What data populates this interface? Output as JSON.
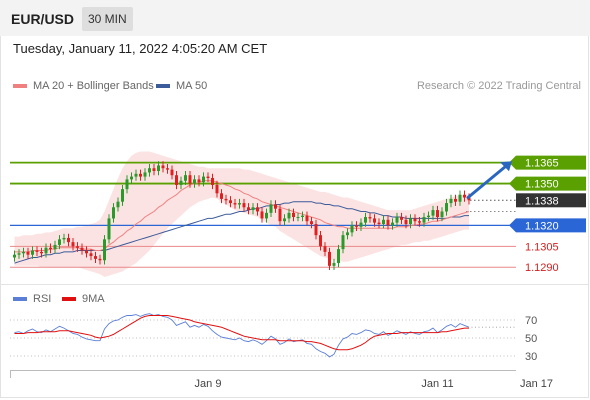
{
  "header": {
    "pair": "EUR/USD",
    "timeframe": "30 MIN"
  },
  "timestamp": "Tuesday, January 11, 2022 4:05:20 AM CET",
  "legend": {
    "ma20_label": "MA 20 + Bollinger Bands",
    "ma50_label": "MA 50",
    "ma20_color": "#f08080",
    "ma50_color": "#3b5b9a"
  },
  "credit": "Research © 2022 Trading Central",
  "rsi_legend": {
    "rsi_label": "RSI",
    "ma9_label": "9MA",
    "rsi_color": "#5b7fd6",
    "ma9_color": "#e01010"
  },
  "colors": {
    "green": "#5aa000",
    "blue": "#2a66d6",
    "red": "#e88888",
    "up": "#2a9a2a",
    "down": "#e02020",
    "last": "#333333"
  },
  "chart_data": {
    "type": "candlestick",
    "ylim": [
      1.1283,
      1.1392
    ],
    "n_bars": 102,
    "levels": [
      {
        "value": 1.1365,
        "label": "1.1365",
        "kind": "resistance",
        "color": "#5aa000"
      },
      {
        "value": 1.135,
        "label": "1.1350",
        "kind": "resistance",
        "color": "#5aa000"
      },
      {
        "value": 1.1338,
        "label": "1.1338",
        "kind": "last",
        "color": "#333333"
      },
      {
        "value": 1.132,
        "label": "1.1320",
        "kind": "pivot",
        "color": "#2a66d6"
      },
      {
        "value": 1.1305,
        "label": "1.1305",
        "kind": "support",
        "color": "#e88888"
      },
      {
        "value": 1.129,
        "label": "1.1290",
        "kind": "support",
        "color": "#e88888"
      }
    ],
    "close": [
      1.1299,
      1.13,
      1.1301,
      1.1299,
      1.1302,
      1.1301,
      1.13,
      1.1304,
      1.1303,
      1.1306,
      1.131,
      1.1311,
      1.1308,
      1.1305,
      1.1304,
      1.1302,
      1.13,
      1.1298,
      1.1296,
      1.1295,
      1.131,
      1.1325,
      1.1333,
      1.1337,
      1.1346,
      1.1353,
      1.1355,
      1.1357,
      1.1355,
      1.1358,
      1.1361,
      1.1359,
      1.1363,
      1.1361,
      1.136,
      1.1356,
      1.1349,
      1.1352,
      1.1356,
      1.135,
      1.1353,
      1.1351,
      1.1355,
      1.1354,
      1.1349,
      1.1343,
      1.1339,
      1.1338,
      1.1336,
      1.1335,
      1.1336,
      1.1333,
      1.1331,
      1.1333,
      1.133,
      1.1325,
      1.1329,
      1.1335,
      1.1332,
      1.1323,
      1.1325,
      1.1329,
      1.1326,
      1.1326,
      1.1327,
      1.1323,
      1.1321,
      1.1313,
      1.1305,
      1.1301,
      1.1291,
      1.1293,
      1.1303,
      1.1313,
      1.1315,
      1.132,
      1.1319,
      1.1322,
      1.1326,
      1.1325,
      1.1322,
      1.1321,
      1.1324,
      1.132,
      1.1322,
      1.1326,
      1.1324,
      1.1321,
      1.1325,
      1.1323,
      1.1322,
      1.1326,
      1.1327,
      1.1331,
      1.1326,
      1.133,
      1.1336,
      1.1339,
      1.1337,
      1.1342,
      1.134,
      1.1338
    ],
    "ma20": [
      1.1301,
      1.1301,
      1.1301,
      1.1301,
      1.1302,
      1.1302,
      1.1302,
      1.1302,
      1.1303,
      1.1303,
      1.1304,
      1.1304,
      1.1304,
      1.1304,
      1.1304,
      1.1303,
      1.1303,
      1.1303,
      1.1302,
      1.1302,
      1.1303,
      1.1306,
      1.1308,
      1.1311,
      1.1313,
      1.1316,
      1.1318,
      1.1321,
      1.1323,
      1.1326,
      1.1328,
      1.133,
      1.1333,
      1.1335,
      1.1338,
      1.134,
      1.1342,
      1.1345,
      1.1347,
      1.1349,
      1.135,
      1.1351,
      1.1352,
      1.1352,
      1.1352,
      1.1351,
      1.135,
      1.1349,
      1.1348,
      1.1346,
      1.1345,
      1.1343,
      1.1342,
      1.134,
      1.1339,
      1.1337,
      1.1336,
      1.1335,
      1.1334,
      1.1333,
      1.1332,
      1.1331,
      1.133,
      1.1329,
      1.1328,
      1.1327,
      1.1326,
      1.1325,
      1.1324,
      1.1322,
      1.1321,
      1.132,
      1.1319,
      1.1319,
      1.1318,
      1.1318,
      1.1318,
      1.1318,
      1.1318,
      1.1318,
      1.1318,
      1.1318,
      1.1318,
      1.1318,
      1.1318,
      1.1319,
      1.1319,
      1.1319,
      1.132,
      1.132,
      1.1321,
      1.1321,
      1.1322,
      1.1323,
      1.1323,
      1.1324,
      1.1325,
      1.1326,
      1.1327,
      1.1328,
      1.1329,
      1.133
    ],
    "ma50": [
      1.1293,
      1.1294,
      1.1295,
      1.1296,
      1.1297,
      1.1297,
      1.1298,
      1.1299,
      1.1299,
      1.13,
      1.13,
      1.1301,
      1.1301,
      1.1301,
      1.1302,
      1.1302,
      1.1302,
      1.1302,
      1.1302,
      1.1302,
      1.1302,
      1.1303,
      1.1304,
      1.1305,
      1.1306,
      1.1307,
      1.1308,
      1.1309,
      1.131,
      1.1311,
      1.1312,
      1.1313,
      1.1314,
      1.1315,
      1.1316,
      1.1317,
      1.1318,
      1.1319,
      1.132,
      1.1321,
      1.1322,
      1.1323,
      1.1324,
      1.1325,
      1.1325,
      1.1326,
      1.1327,
      1.1328,
      1.1328,
      1.1329,
      1.133,
      1.133,
      1.1331,
      1.1332,
      1.1332,
      1.1333,
      1.1334,
      1.1334,
      1.1335,
      1.1335,
      1.1336,
      1.1336,
      1.1337,
      1.1337,
      1.1337,
      1.1337,
      1.1337,
      1.1336,
      1.1336,
      1.1335,
      1.1335,
      1.1334,
      1.1334,
      1.1333,
      1.1332,
      1.1332,
      1.1331,
      1.133,
      1.133,
      1.1329,
      1.1329,
      1.1328,
      1.1327,
      1.1327,
      1.1326,
      1.1326,
      1.1326,
      1.1325,
      1.1325,
      1.1325,
      1.1325,
      1.1325,
      1.1325,
      1.1325,
      1.1325,
      1.1325,
      1.1325,
      1.1326,
      1.1326,
      1.1326,
      1.1327,
      1.1327
    ],
    "bb_upper": [
      1.1312,
      1.1312,
      1.1313,
      1.1313,
      1.1313,
      1.1314,
      1.1314,
      1.1315,
      1.1315,
      1.1316,
      1.1317,
      1.1318,
      1.1318,
      1.1318,
      1.1319,
      1.1319,
      1.132,
      1.1321,
      1.1322,
      1.1324,
      1.133,
      1.1338,
      1.1346,
      1.1354,
      1.1361,
      1.1366,
      1.137,
      1.1372,
      1.1373,
      1.1373,
      1.1373,
      1.1372,
      1.1371,
      1.137,
      1.1369,
      1.1368,
      1.1367,
      1.1366,
      1.1365,
      1.1364,
      1.1363,
      1.1362,
      1.1362,
      1.1361,
      1.1361,
      1.1361,
      1.1361,
      1.1361,
      1.1361,
      1.1361,
      1.1361,
      1.136,
      1.136,
      1.1359,
      1.1358,
      1.1357,
      1.1356,
      1.1355,
      1.1354,
      1.1353,
      1.1352,
      1.1351,
      1.135,
      1.1349,
      1.1348,
      1.1347,
      1.1346,
      1.1345,
      1.1344,
      1.1344,
      1.1343,
      1.1342,
      1.1341,
      1.134,
      1.134,
      1.1339,
      1.1338,
      1.1337,
      1.1336,
      1.1335,
      1.1334,
      1.1333,
      1.1332,
      1.1331,
      1.1331,
      1.1331,
      1.1331,
      1.1331,
      1.1331,
      1.1332,
      1.1333,
      1.1334,
      1.1335,
      1.1336,
      1.1337,
      1.1338,
      1.1339,
      1.134,
      1.1341,
      1.1342,
      1.1342,
      1.1342
    ],
    "bb_lower": [
      1.1291,
      1.1291,
      1.1291,
      1.1291,
      1.1291,
      1.1291,
      1.129,
      1.129,
      1.129,
      1.129,
      1.129,
      1.129,
      1.129,
      1.129,
      1.129,
      1.1289,
      1.1288,
      1.1287,
      1.1286,
      1.1285,
      1.1283,
      1.1284,
      1.1285,
      1.1286,
      1.1287,
      1.1289,
      1.1291,
      1.1293,
      1.1296,
      1.1299,
      1.1302,
      1.1306,
      1.131,
      1.1314,
      1.1318,
      1.1321,
      1.1324,
      1.1327,
      1.133,
      1.1333,
      1.1335,
      1.1337,
      1.1338,
      1.1339,
      1.134,
      1.1339,
      1.1337,
      1.1335,
      1.1333,
      1.1331,
      1.133,
      1.1329,
      1.1328,
      1.1327,
      1.1326,
      1.1324,
      1.1322,
      1.132,
      1.1319,
      1.1316,
      1.1314,
      1.1312,
      1.131,
      1.1308,
      1.1306,
      1.1304,
      1.1302,
      1.13,
      1.1298,
      1.1297,
      1.1296,
      1.1295,
      1.1295,
      1.1294,
      1.1294,
      1.1295,
      1.1296,
      1.1297,
      1.1298,
      1.1299,
      1.13,
      1.1301,
      1.1302,
      1.1303,
      1.1304,
      1.1305,
      1.1306,
      1.1306,
      1.1307,
      1.1308,
      1.1308,
      1.1309,
      1.1309,
      1.131,
      1.1311,
      1.1312,
      1.1313,
      1.1314,
      1.1315,
      1.1316,
      1.1317,
      1.1317
    ],
    "arrow": {
      "from_value": 1.134,
      "to_value": 1.1366
    },
    "projection_value": 1.133,
    "x_ticks": [
      {
        "bar": 43,
        "label": "Jan 9"
      },
      {
        "bar": 94,
        "label": "Jan 11"
      },
      {
        "bar": 116,
        "label": "Jan 17"
      }
    ],
    "rsi": {
      "ylim": [
        20,
        80
      ],
      "levels": [
        {
          "value": 70,
          "label": "70"
        },
        {
          "value": 50,
          "label": "50"
        },
        {
          "value": 30,
          "label": "30"
        }
      ],
      "values": [
        56,
        57,
        55,
        58,
        60,
        57,
        56,
        59,
        57,
        60,
        63,
        61,
        58,
        55,
        54,
        51,
        49,
        48,
        47,
        47,
        60,
        66,
        69,
        70,
        73,
        75,
        75,
        76,
        74,
        76,
        77,
        75,
        76,
        74,
        73,
        70,
        64,
        66,
        68,
        62,
        64,
        62,
        65,
        63,
        58,
        54,
        51,
        50,
        49,
        48,
        50,
        47,
        46,
        48,
        46,
        43,
        47,
        52,
        49,
        43,
        45,
        49,
        46,
        47,
        48,
        44,
        43,
        38,
        35,
        33,
        29,
        32,
        42,
        49,
        51,
        55,
        54,
        56,
        59,
        58,
        55,
        54,
        57,
        53,
        55,
        58,
        56,
        54,
        57,
        55,
        54,
        57,
        58,
        61,
        56,
        59,
        63,
        65,
        62,
        66,
        64,
        62
      ],
      "ma9": [
        55,
        55,
        55,
        56,
        56,
        56,
        57,
        57,
        57,
        57,
        58,
        58,
        58,
        57,
        56,
        55,
        54,
        53,
        51,
        50,
        51,
        52,
        54,
        57,
        60,
        63,
        66,
        69,
        72,
        74,
        75,
        75,
        75,
        75,
        75,
        74,
        73,
        72,
        71,
        70,
        68,
        67,
        66,
        65,
        64,
        63,
        62,
        60,
        58,
        56,
        54,
        52,
        51,
        50,
        49,
        48,
        48,
        48,
        48,
        47,
        47,
        47,
        47,
        47,
        47,
        46,
        46,
        45,
        44,
        42,
        40,
        38,
        37,
        37,
        37,
        38,
        40,
        42,
        45,
        49,
        52,
        53,
        54,
        55,
        55,
        55,
        56,
        56,
        56,
        56,
        56,
        56,
        56,
        56,
        56,
        57,
        57,
        58,
        59,
        60,
        61,
        61
      ]
    }
  }
}
